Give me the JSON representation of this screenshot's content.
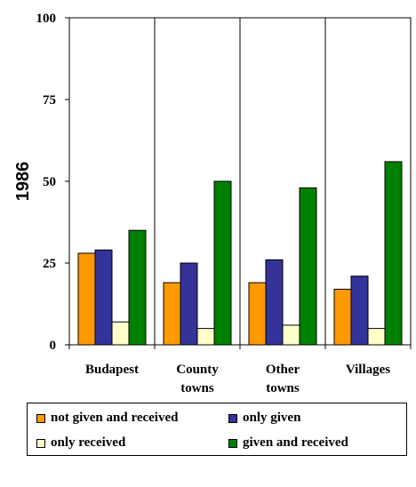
{
  "chart_data": {
    "type": "bar",
    "ylabel": "1986",
    "xlabel": "",
    "ylim": [
      0,
      100
    ],
    "yticks": [
      "0",
      "25",
      "50",
      "75",
      "100"
    ],
    "categories": [
      [
        "Budapest"
      ],
      [
        "County",
        "towns"
      ],
      [
        "Other",
        "towns"
      ],
      [
        "Villages"
      ]
    ],
    "series": [
      {
        "name": "not given and received",
        "color": "#ff9900",
        "values": [
          28,
          19,
          19,
          17
        ]
      },
      {
        "name": "only given",
        "color": "#333399",
        "values": [
          29,
          25,
          26,
          21
        ]
      },
      {
        "name": "only received",
        "color": "#ffffcc",
        "values": [
          7,
          5,
          6,
          5
        ]
      },
      {
        "name": "given and received",
        "color": "#008000",
        "values": [
          35,
          50,
          48,
          56
        ]
      }
    ],
    "legend_position": "bottom",
    "grid": false
  }
}
